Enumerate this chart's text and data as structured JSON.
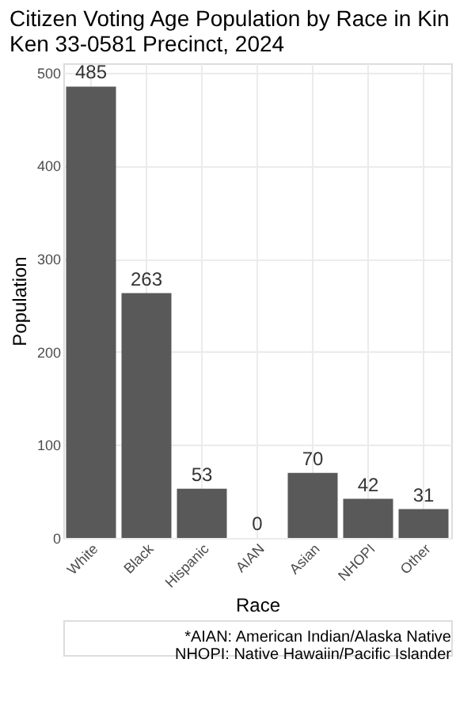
{
  "chart_data": {
    "type": "bar",
    "title": "Citizen Voting Age Population by Race in Kin\nKen 33-0581 Precinct,  2024",
    "xlabel": "Race",
    "ylabel": "Population",
    "categories": [
      "White",
      "Black",
      "Hispanic",
      "AIAN",
      "Asian",
      "NHOPI",
      "Other"
    ],
    "values": [
      485,
      263,
      53,
      0,
      70,
      42,
      31
    ],
    "color": "#595959",
    "data_labels": true,
    "ylim": [
      0,
      510
    ],
    "yticks": [
      0,
      100,
      200,
      300,
      400,
      500
    ],
    "grid": true,
    "annotations": [
      "*AIAN: American Indian/Alaska Native",
      "NHOPI: Native Hawaiin/Pacific Islander"
    ]
  }
}
